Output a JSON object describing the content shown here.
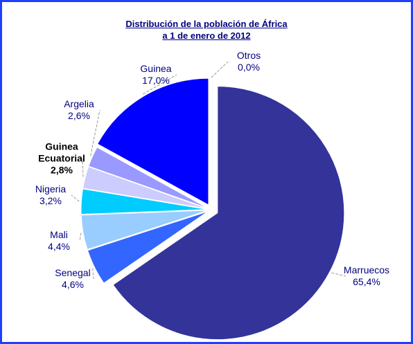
{
  "chart_data": {
    "type": "pie",
    "title": [
      "Distribución de la población de África",
      "a 1 de enero de 2012"
    ],
    "categories": [
      "Marruecos",
      "Senegal",
      "Mali",
      "Nigeria",
      "Guinea Ecuatorial",
      "Argelia",
      "Guinea",
      "Otros"
    ],
    "values": [
      65.4,
      4.6,
      4.4,
      3.2,
      2.8,
      2.6,
      17.0,
      0.0
    ],
    "value_labels": [
      "65,4%",
      "4,6%",
      "4,4%",
      "3,2%",
      "2,8%",
      "2,6%",
      "17,0%",
      "0,0%"
    ],
    "colors": [
      "#333399",
      "#3366ff",
      "#99ccff",
      "#00ccff",
      "#ccccff",
      "#9999ff",
      "#0000ff",
      "#ffffff"
    ]
  }
}
